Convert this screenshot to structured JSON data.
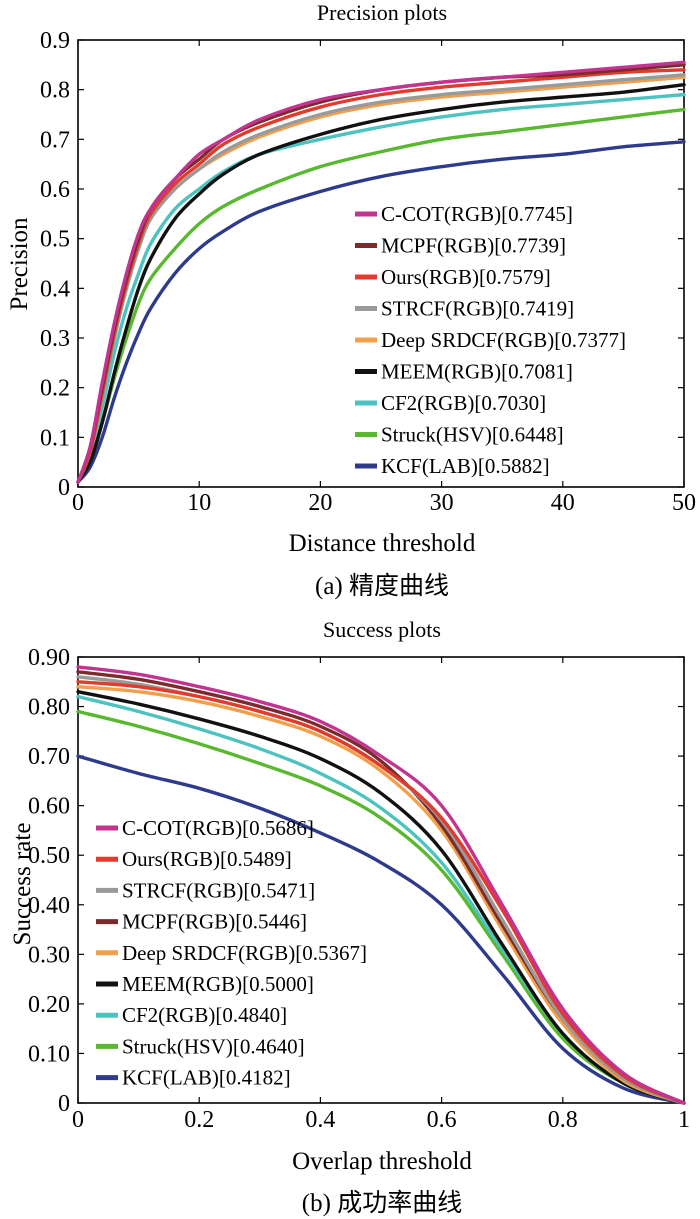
{
  "chart_data": [
    {
      "type": "line",
      "title": "Precision plots",
      "xlabel": "Distance threshold",
      "ylabel": "Precision",
      "caption": "(a) 精度曲线",
      "xlim": [
        0,
        50
      ],
      "ylim": [
        0,
        0.9
      ],
      "x_ticks": [
        "0",
        "10",
        "20",
        "30",
        "40",
        "50"
      ],
      "y_ticks": [
        "0",
        "0.1",
        "0.2",
        "0.3",
        "0.4",
        "0.5",
        "0.6",
        "0.7",
        "0.8",
        "0.9"
      ],
      "grid": false,
      "legend_position": "lower-right",
      "x": [
        0,
        1,
        2,
        3,
        4,
        5,
        6,
        8,
        10,
        12,
        15,
        20,
        25,
        30,
        35,
        40,
        45,
        50
      ],
      "series": [
        {
          "name": "C-COT(RGB)[0.7745]",
          "color": "#c2348f",
          "values": [
            0.01,
            0.08,
            0.21,
            0.33,
            0.43,
            0.51,
            0.56,
            0.62,
            0.67,
            0.7,
            0.74,
            0.78,
            0.8,
            0.815,
            0.825,
            0.835,
            0.845,
            0.855
          ]
        },
        {
          "name": "MCPF(RGB)[0.7739]",
          "color": "#7b2b2b",
          "values": [
            0.01,
            0.08,
            0.2,
            0.32,
            0.42,
            0.5,
            0.56,
            0.62,
            0.66,
            0.7,
            0.735,
            0.775,
            0.8,
            0.815,
            0.825,
            0.83,
            0.84,
            0.85
          ]
        },
        {
          "name": "Ours(RGB)[0.7579]",
          "color": "#e23b2d",
          "values": [
            0.01,
            0.07,
            0.19,
            0.31,
            0.41,
            0.49,
            0.55,
            0.61,
            0.65,
            0.69,
            0.725,
            0.765,
            0.79,
            0.805,
            0.815,
            0.825,
            0.835,
            0.84
          ]
        },
        {
          "name": "STRCF(RGB)[0.7419]",
          "color": "#9a9a9a",
          "values": [
            0.01,
            0.07,
            0.18,
            0.3,
            0.4,
            0.48,
            0.54,
            0.6,
            0.64,
            0.675,
            0.71,
            0.75,
            0.775,
            0.79,
            0.8,
            0.81,
            0.82,
            0.83
          ]
        },
        {
          "name": "Deep SRDCF(RGB)[0.7377]",
          "color": "#f0a04b",
          "values": [
            0.01,
            0.07,
            0.18,
            0.3,
            0.4,
            0.48,
            0.54,
            0.6,
            0.64,
            0.67,
            0.705,
            0.745,
            0.77,
            0.785,
            0.795,
            0.805,
            0.815,
            0.825
          ]
        },
        {
          "name": "MEEM(RGB)[0.7081]",
          "color": "#111111",
          "values": [
            0.01,
            0.05,
            0.13,
            0.23,
            0.32,
            0.4,
            0.46,
            0.54,
            0.59,
            0.63,
            0.67,
            0.71,
            0.74,
            0.76,
            0.775,
            0.785,
            0.795,
            0.81
          ]
        },
        {
          "name": "CF2(RGB)[0.7030]",
          "color": "#4cc3c0",
          "values": [
            0.01,
            0.06,
            0.16,
            0.27,
            0.36,
            0.43,
            0.49,
            0.56,
            0.6,
            0.635,
            0.67,
            0.7,
            0.725,
            0.745,
            0.76,
            0.77,
            0.78,
            0.79
          ]
        },
        {
          "name": "Struck(HSV)[0.6448]",
          "color": "#58b82f",
          "values": [
            0.01,
            0.05,
            0.13,
            0.22,
            0.3,
            0.37,
            0.42,
            0.48,
            0.53,
            0.565,
            0.6,
            0.645,
            0.675,
            0.7,
            0.715,
            0.73,
            0.745,
            0.76
          ]
        },
        {
          "name": "KCF(LAB)[0.5882]",
          "color": "#2e3a8c",
          "values": [
            0.01,
            0.04,
            0.1,
            0.18,
            0.25,
            0.31,
            0.36,
            0.43,
            0.48,
            0.515,
            0.555,
            0.595,
            0.625,
            0.645,
            0.66,
            0.67,
            0.685,
            0.695
          ]
        }
      ]
    },
    {
      "type": "line",
      "title": "Success plots",
      "xlabel": "Overlap threshold",
      "ylabel": "Success rate",
      "caption": "(b) 成功率曲线",
      "xlim": [
        0,
        1
      ],
      "ylim": [
        0,
        0.9
      ],
      "x_ticks": [
        "0",
        "0.2",
        "0.4",
        "0.6",
        "0.8",
        "1"
      ],
      "y_ticks": [
        "0",
        "0.10",
        "0.20",
        "0.30",
        "0.40",
        "0.50",
        "0.60",
        "0.70",
        "0.80",
        "0.90"
      ],
      "grid": false,
      "legend_position": "lower-left",
      "x": [
        0,
        0.1,
        0.2,
        0.3,
        0.4,
        0.5,
        0.6,
        0.7,
        0.8,
        0.9,
        1.0
      ],
      "series": [
        {
          "name": "C-COT(RGB)[0.5686]",
          "color": "#c2348f",
          "values": [
            0.88,
            0.865,
            0.84,
            0.81,
            0.77,
            0.7,
            0.6,
            0.4,
            0.19,
            0.06,
            0.0
          ]
        },
        {
          "name": "Ours(RGB)[0.5489]",
          "color": "#e23b2d",
          "values": [
            0.85,
            0.84,
            0.82,
            0.79,
            0.75,
            0.68,
            0.575,
            0.39,
            0.18,
            0.055,
            0.0
          ]
        },
        {
          "name": "STRCF(RGB)[0.5471]",
          "color": "#9a9a9a",
          "values": [
            0.86,
            0.845,
            0.82,
            0.79,
            0.75,
            0.68,
            0.57,
            0.37,
            0.17,
            0.05,
            0.0
          ]
        },
        {
          "name": "MCPF(RGB)[0.5446]",
          "color": "#7b2b2b",
          "values": [
            0.87,
            0.855,
            0.83,
            0.8,
            0.76,
            0.69,
            0.56,
            0.36,
            0.17,
            0.05,
            0.0
          ]
        },
        {
          "name": "Deep SRDCF(RGB)[0.5367]",
          "color": "#f0a04b",
          "values": [
            0.84,
            0.83,
            0.81,
            0.78,
            0.74,
            0.67,
            0.55,
            0.35,
            0.16,
            0.045,
            0.0
          ]
        },
        {
          "name": "MEEM(RGB)[0.5000]",
          "color": "#111111",
          "values": [
            0.83,
            0.805,
            0.775,
            0.74,
            0.695,
            0.625,
            0.51,
            0.32,
            0.14,
            0.04,
            0.0
          ]
        },
        {
          "name": "CF2(RGB)[0.4840]",
          "color": "#4cc3c0",
          "values": [
            0.82,
            0.79,
            0.755,
            0.715,
            0.665,
            0.595,
            0.485,
            0.31,
            0.14,
            0.04,
            0.0
          ]
        },
        {
          "name": "Struck(HSV)[0.4640]",
          "color": "#58b82f",
          "values": [
            0.79,
            0.76,
            0.725,
            0.685,
            0.64,
            0.575,
            0.47,
            0.3,
            0.13,
            0.04,
            0.0
          ]
        },
        {
          "name": "KCF(LAB)[0.4182]",
          "color": "#2e3a8c",
          "values": [
            0.7,
            0.665,
            0.635,
            0.595,
            0.545,
            0.485,
            0.4,
            0.26,
            0.11,
            0.03,
            0.0
          ]
        }
      ]
    }
  ]
}
